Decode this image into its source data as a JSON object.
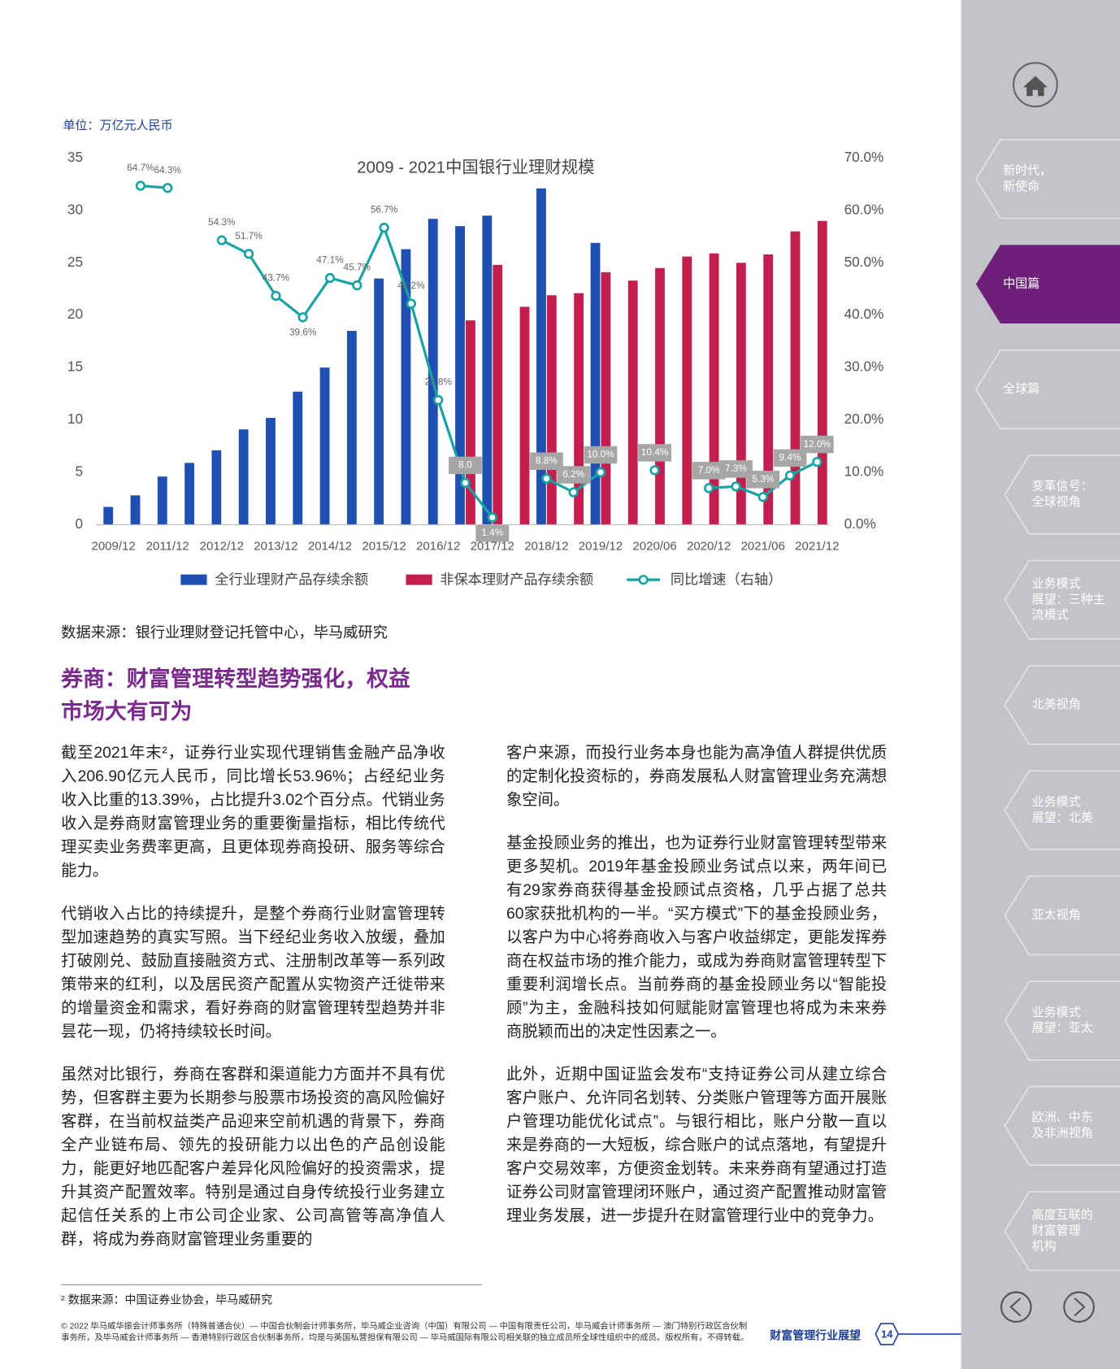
{
  "unit_label": "单位：万亿元人民币",
  "chart_data": {
    "type": "bar-line",
    "title": "2009 - 2021中国银行业理财规模",
    "categories": [
      "2009/12",
      null,
      "2011/12",
      null,
      "2012/12",
      null,
      "2013/12",
      null,
      "2014/12",
      null,
      "2015/12",
      null,
      "2016/12",
      null,
      "2017/12",
      null,
      "2018/12",
      null,
      "2019/12",
      null,
      "2020/06",
      null,
      "2020/12",
      null,
      "2021/06",
      null,
      "2021/12"
    ],
    "series": [
      {
        "name": "全行业理财产品存续余额",
        "type": "bar",
        "color": "#1f4fb0",
        "values": [
          1.7,
          2.8,
          4.6,
          5.9,
          7.1,
          9.1,
          10.2,
          12.7,
          15.0,
          18.5,
          23.5,
          26.3,
          29.2,
          28.5,
          29.5,
          null,
          32.1,
          null,
          26.9,
          null,
          null,
          null,
          null,
          null,
          null,
          null,
          null
        ]
      },
      {
        "name": "非保本理财产品存续余额",
        "type": "bar",
        "color": "#c21f4e",
        "values": [
          null,
          null,
          null,
          null,
          null,
          null,
          null,
          null,
          null,
          null,
          null,
          null,
          null,
          19.5,
          24.8,
          20.8,
          21.9,
          22.1,
          24.1,
          23.3,
          24.5,
          25.6,
          25.9,
          25.0,
          25.8,
          28.0,
          29.0
        ]
      },
      {
        "name": "同比增速（右轴）",
        "type": "line",
        "axis": "y2",
        "color": "#1aa3a3",
        "values": [
          null,
          64.7,
          64.3,
          null,
          54.3,
          51.7,
          43.7,
          39.6,
          47.1,
          45.7,
          56.7,
          42.2,
          23.8,
          8.0,
          1.4,
          null,
          8.8,
          6.2,
          10.0,
          null,
          10.4,
          null,
          7.0,
          7.3,
          5.3,
          9.4,
          12.0
        ],
        "value_labels": [
          null,
          "64.7%",
          "64.3%",
          null,
          "54.3%",
          "51.7%",
          "43.7%",
          "39.6%",
          "47.1%",
          "45.7%",
          "56.7%",
          "42.2%",
          "23.8%",
          "8.0",
          "1.4%",
          null,
          "8.8%",
          "6.2%",
          "10.0%",
          null,
          "10.4%",
          null,
          "7.0%",
          "7.3%",
          "5.3%",
          "9.4%",
          "12.0%"
        ]
      }
    ],
    "ylim": [
      0,
      35
    ],
    "yticks": [
      0,
      5,
      10,
      15,
      20,
      25,
      30,
      35
    ],
    "y2lim": [
      0,
      70
    ],
    "y2ticks": [
      {
        "value": 0,
        "label": "0.0%"
      },
      {
        "value": 10,
        "label": "10.0%"
      },
      {
        "value": 20,
        "label": "20.0%"
      },
      {
        "value": 30,
        "label": "30.0%"
      },
      {
        "value": 40,
        "label": "40.0%"
      },
      {
        "value": 50,
        "label": "50.0%"
      },
      {
        "value": 60,
        "label": "60.0%"
      },
      {
        "value": 70,
        "label": "70.0%"
      }
    ],
    "grid": false,
    "legend": "bottom"
  },
  "source": "数据来源：银行业理财登记托管中心，毕马威研究",
  "heading": [
    "券商：财富管理转型趋势强化，权益",
    "市场大有可为"
  ],
  "paragraphs_left": [
    "截至2021年末²，证券行业实现代理销售金融产品净收入206.90亿元人民币，同比增长53.96%；占经纪业务收入比重的13.39%，占比提升3.02个百分点。代销业务收入是券商财富管理业务的重要衡量指标，相比传统代理买卖业务费率更高，且更体现券商投研、服务等综合能力。",
    "代销收入占比的持续提升，是整个券商行业财富管理转型加速趋势的真实写照。当下经纪业务收入放缓，叠加打破刚兑、鼓励直接融资方式、注册制改革等一系列政策带来的红利，以及居民资产配置从实物资产迁徙带来的增量资金和需求，看好券商的财富管理转型趋势并非昙花一现，仍将持续较长时间。",
    "虽然对比银行，券商在客群和渠道能力方面并不具有优势，但客群主要为长期参与股票市场投资的高风险偏好客群，在当前权益类产品迎来空前机遇的背景下，券商全产业链布局、领先的投研能力以出色的产品创设能力，能更好地匹配客户差异化风险偏好的投资需求，提升其资产配置效率。特别是通过自身传统投行业务建立起信任关系的上市公司企业家、公司高管等高净值人群，将成为券商财富管理业务重要的"
  ],
  "paragraphs_right": [
    "客户来源，而投行业务本身也能为高净值人群提供优质的定制化投资标的，券商发展私人财富管理业务充满想象空间。",
    "基金投顾业务的推出，也为证券行业财富管理转型带来更多契机。2019年基金投顾业务试点以来，两年间已有29家券商获得基金投顾试点资格，几乎占据了总共60家获批机构的一半。“买方模式”下的基金投顾业务，以客户为中心将券商收入与客户收益绑定，更能发挥券商在权益市场的推介能力，或成为券商财富管理转型下重要利润增长点。当前券商的基金投顾业务以“智能投顾”为主，金融科技如何赋能财富管理也将成为未来券商脱颖而出的决定性因素之一。",
    "此外，近期中国证监会发布“支持证券公司从建立综合客户账户、允许同名划转、分类账户管理等方面开展账户管理功能优化试点”。与银行相比，账户分散一直以来是券商的一大短板，综合账户的试点落地，有望提升客户交易效率，方便资金划转。未来券商有望通过打造证券公司财富管理闭环账户，通过资产配置推动财富管理业务发展，进一步提升在财富管理行业中的竞争力。"
  ],
  "footnote": "² 数据来源：中国证券业协会，毕马威研究",
  "copyright": "© 2022 毕马威华振会计师事务所（特殊普通合伙）— 中国合伙制会计师事务所，毕马威企业咨询（中国）有限公司 — 中国有限责任公司，毕马威会计师事务所 — 澳门特别行政区合伙制事务所，及毕马威会计师事务所 — 香港特别行政区合伙制事务所，均是与英国私营担保有限公司 — 毕马威国际有限公司相关联的独立成员所全球性组织中的成员。版权所有，不得转载。",
  "footer_title": "财富管理行业展望",
  "page_number": "14",
  "nav": [
    {
      "lines": [
        "新时代，",
        "新使命"
      ]
    },
    {
      "lines": [
        "中国篇"
      ],
      "active": true
    },
    {
      "lines": [
        "全球篇"
      ]
    },
    {
      "lines": [
        "变革信号：",
        "全球视角"
      ]
    },
    {
      "lines": [
        "业务模式",
        "展望：三种主",
        "流模式"
      ]
    },
    {
      "lines": [
        "北美视角"
      ]
    },
    {
      "lines": [
        "业务模式",
        "展望：北美"
      ]
    },
    {
      "lines": [
        "亚太视角"
      ]
    },
    {
      "lines": [
        "业务模式",
        "展望：亚太"
      ]
    },
    {
      "lines": [
        "欧洲、中东",
        "及非洲视角"
      ]
    },
    {
      "lines": [
        "高度互联的",
        "财富管理",
        "机构"
      ]
    }
  ]
}
